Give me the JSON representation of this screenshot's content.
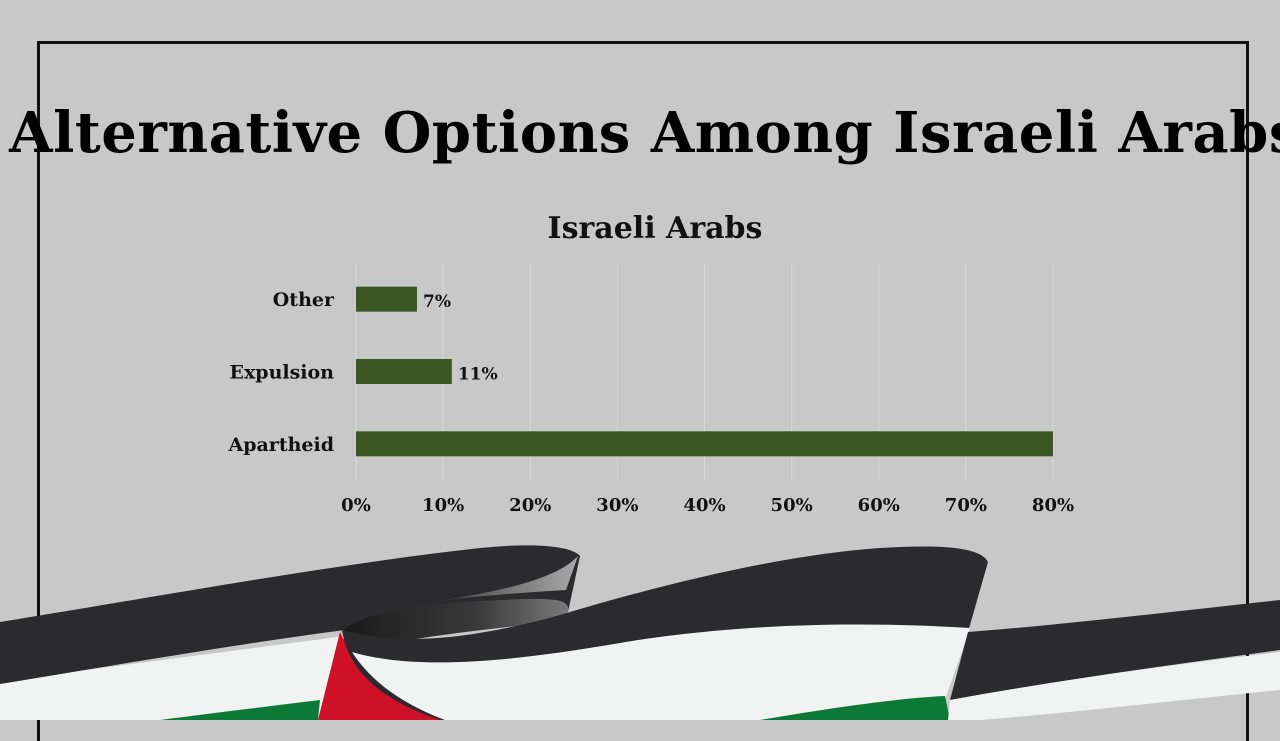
{
  "slide": {
    "title": "Alternative Options Among Israeli Arabs"
  },
  "colors": {
    "background": "#c8c8c8",
    "bar": "#385723",
    "gridline": "#d9d9d9",
    "flag_black": "#2b2a2c",
    "flag_white": "#f1f2f2",
    "flag_green": "#0c7a36",
    "flag_red": "#ce1126"
  },
  "chart_data": {
    "type": "bar",
    "orientation": "horizontal",
    "title": "Israeli Arabs",
    "categories": [
      "Other",
      "Expulsion",
      "Apartheid"
    ],
    "values": [
      7,
      11,
      80
    ],
    "data_labels": [
      "7%",
      "11%",
      ""
    ],
    "xlim": [
      0,
      80
    ],
    "x_ticks": [
      "0%",
      "10%",
      "20%",
      "30%",
      "40%",
      "50%",
      "60%",
      "70%",
      "80%"
    ],
    "grid": true,
    "legend": "none"
  },
  "decoration": {
    "flag": "palestinian-flag-ribbon"
  }
}
